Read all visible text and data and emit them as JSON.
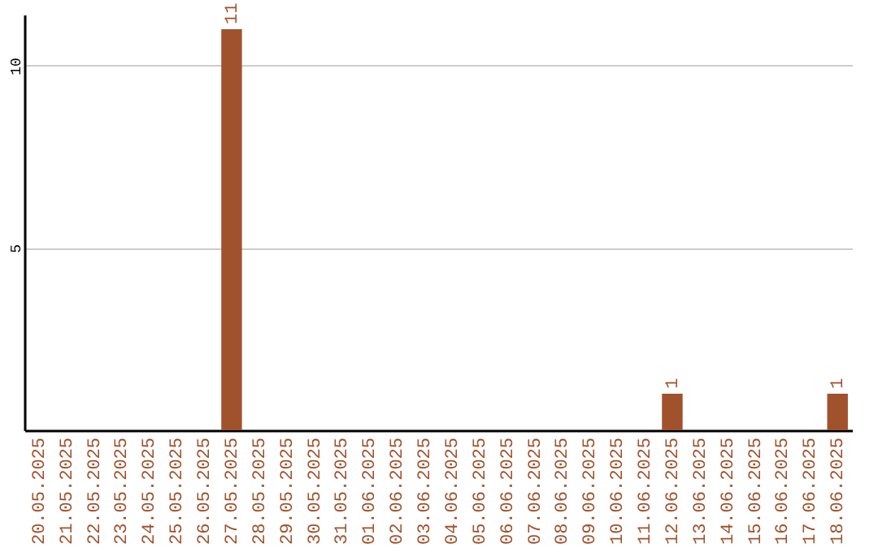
{
  "chart_data": {
    "type": "bar",
    "categories": [
      "20.05.2025",
      "21.05.2025",
      "22.05.2025",
      "23.05.2025",
      "24.05.2025",
      "25.05.2025",
      "26.05.2025",
      "27.05.2025",
      "28.05.2025",
      "29.05.2025",
      "30.05.2025",
      "31.05.2025",
      "01.06.2025",
      "02.06.2025",
      "03.06.2025",
      "04.06.2025",
      "05.06.2025",
      "06.06.2025",
      "07.06.2025",
      "08.06.2025",
      "09.06.2025",
      "10.06.2025",
      "11.06.2025",
      "12.06.2025",
      "13.06.2025",
      "14.06.2025",
      "15.06.2025",
      "16.06.2025",
      "17.06.2025",
      "18.06.2025"
    ],
    "values": [
      0,
      0,
      0,
      0,
      0,
      0,
      0,
      11,
      0,
      0,
      0,
      0,
      0,
      0,
      0,
      0,
      0,
      0,
      0,
      0,
      0,
      0,
      0,
      1,
      0,
      0,
      0,
      0,
      0,
      1
    ],
    "value_labels": [
      null,
      null,
      null,
      null,
      null,
      null,
      null,
      "11",
      null,
      null,
      null,
      null,
      null,
      null,
      null,
      null,
      null,
      null,
      null,
      null,
      null,
      null,
      null,
      "1",
      null,
      null,
      null,
      null,
      null,
      "1"
    ],
    "color": "#a0522d",
    "ylim": [
      0,
      11.4
    ],
    "yticks": [
      5,
      10
    ],
    "grid": "y"
  }
}
